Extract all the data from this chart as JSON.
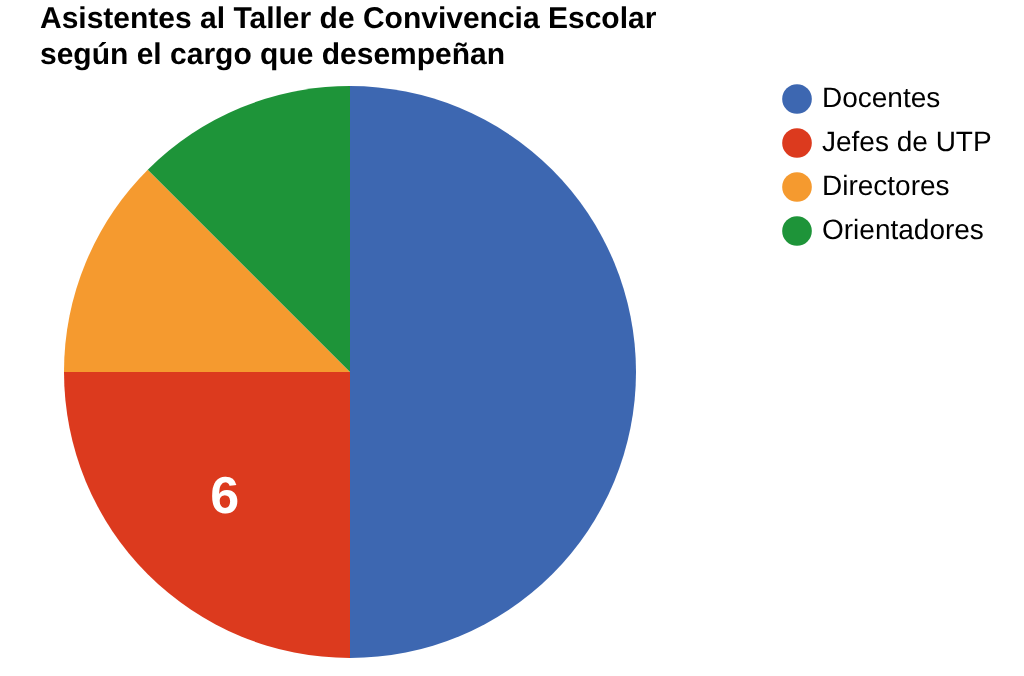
{
  "chart_data": {
    "type": "pie",
    "title": [
      "Asistentes al Taller de Convivencia Escolar",
      "según el cargo que desempeñan"
    ],
    "categories": [
      "Docentes",
      "Jefes de UTP",
      "Directores",
      "Orientadores"
    ],
    "values": [
      12,
      6,
      3,
      3
    ],
    "value_labels": [
      null,
      "6",
      null,
      null
    ],
    "colors": [
      "#3d67b1",
      "#dc3a1e",
      "#f59a2f",
      "#1e9439"
    ],
    "legend": "right"
  }
}
